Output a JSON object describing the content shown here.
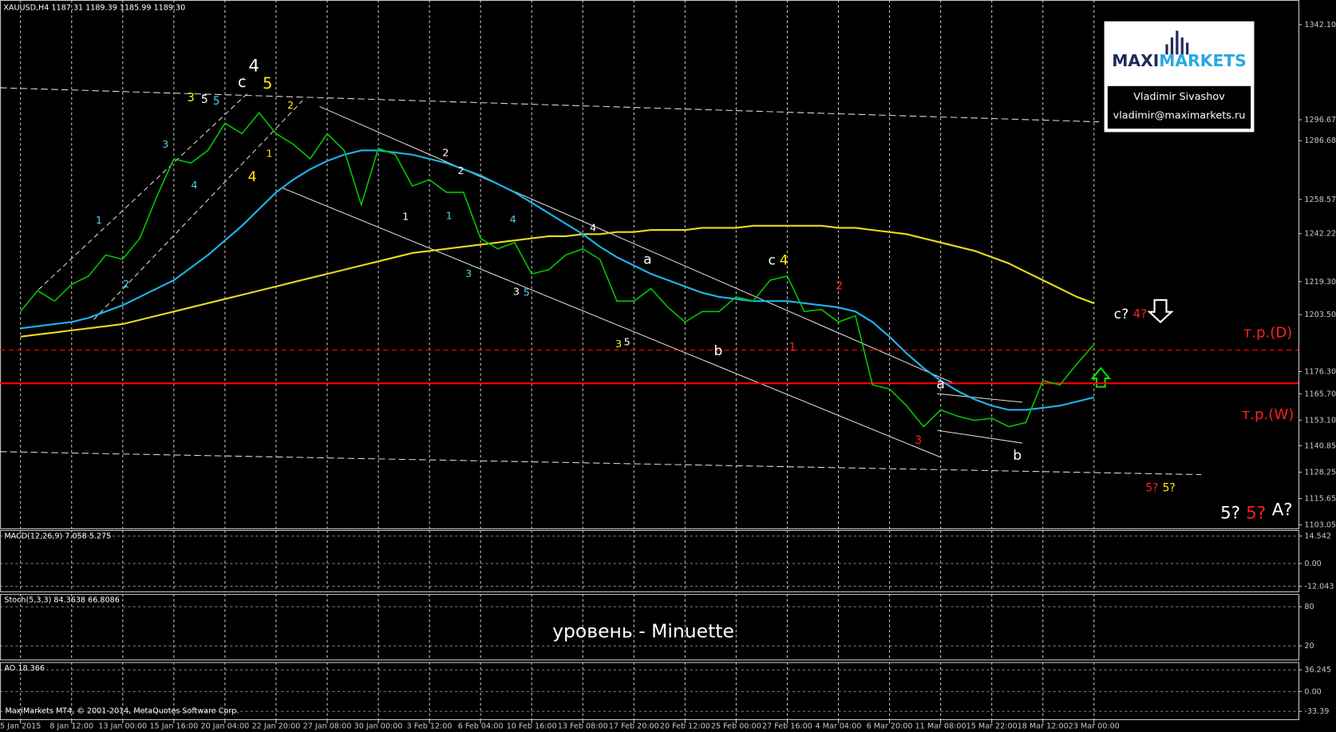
{
  "chart_data": {
    "type": "line",
    "title": "XAUUSD,H4  1187.31 1189.39 1185.99 1189.30",
    "categories": [
      "5 Jan 2015",
      null,
      null,
      "8 Jan 12:00",
      null,
      null,
      "13 Jan 00:00",
      null,
      null,
      "15 Jan 16:00",
      null,
      null,
      "20 Jan 04:00",
      null,
      null,
      "22 Jan 20:00",
      null,
      null,
      "27 Jan 08:00",
      null,
      null,
      "30 Jan 00:00",
      null,
      null,
      "3 Feb 12:00",
      null,
      null,
      "6 Feb 04:00",
      null,
      null,
      "10 Feb 16:00",
      null,
      null,
      "13 Feb 08:00",
      null,
      null,
      "17 Feb 20:00",
      null,
      null,
      "20 Feb 12:00",
      null,
      null,
      "25 Feb 00:00",
      null,
      null,
      "27 Feb 16:00",
      null,
      null,
      "4 Mar 04:00",
      null,
      null,
      "6 Mar 20:00",
      null,
      null,
      "11 Mar 08:00",
      null,
      null,
      "15 Mar 22:00",
      null,
      null,
      "18 Mar 12:00",
      null,
      null,
      "23 Mar 00:00"
    ],
    "series": [
      {
        "color": "#00c800",
        "values": [
          1205,
          1215,
          1210,
          1218,
          1222,
          1232,
          1230,
          1240,
          1260,
          1278,
          1276,
          1282,
          1295,
          1290,
          1300,
          1290,
          1285,
          1278,
          1290,
          1282,
          1256,
          1283,
          1280,
          1265,
          1268,
          1262,
          1262,
          1240,
          1235,
          1238,
          1223,
          1225,
          1232,
          1235,
          1230,
          1210,
          1210,
          1216,
          1207,
          1200,
          1205,
          1205,
          1212,
          1210,
          1220,
          1222,
          1205,
          1206,
          1200,
          1203,
          1170,
          1168,
          1160,
          1150,
          1158,
          1155,
          1153,
          1154,
          1150,
          1152,
          1172,
          1170,
          1180,
          1189.3
        ]
      },
      {
        "color": "#1eb4f0",
        "values": [
          1197,
          1198,
          1199,
          1200,
          1202,
          1205,
          1208,
          1212,
          1216,
          1220,
          1226,
          1232,
          1239,
          1246,
          1254,
          1262,
          1268,
          1273,
          1277,
          1280,
          1282,
          1282,
          1281,
          1280,
          1278,
          1276,
          1273,
          1270,
          1266,
          1262,
          1257,
          1252,
          1247,
          1242,
          1236,
          1231,
          1227,
          1223,
          1220,
          1217,
          1214,
          1212,
          1211,
          1210,
          1210,
          1210,
          1209,
          1208,
          1207,
          1205,
          1200,
          1193,
          1185,
          1178,
          1172,
          1167,
          1163,
          1160,
          1158,
          1158,
          1159,
          1160,
          1162,
          1164
        ]
      },
      {
        "color": "#e6dc1e",
        "values": [
          1193,
          1194,
          1195,
          1196,
          1197,
          1198,
          1199,
          1201,
          1203,
          1205,
          1207,
          1209,
          1211,
          1213,
          1215,
          1217,
          1219,
          1221,
          1223,
          1225,
          1227,
          1229,
          1231,
          1233,
          1234,
          1235,
          1236,
          1237,
          1238,
          1239,
          1240,
          1241,
          1241,
          1242,
          1242,
          1243,
          1243,
          1244,
          1244,
          1244,
          1245,
          1245,
          1245,
          1246,
          1246,
          1246,
          1246,
          1246,
          1245,
          1245,
          1244,
          1243,
          1242,
          1240,
          1238,
          1236,
          1234,
          1231,
          1228,
          1224,
          1220,
          1216,
          1212,
          1209
        ]
      }
    ],
    "ylim": [
      1101.4,
      1353.9
    ],
    "yticks": [
      {
        "value": 1342.1,
        "label": "1342.10"
      },
      {
        "value": 1296.67,
        "label": "1296.67"
      },
      {
        "value": 1286.68,
        "label": "1286.68"
      },
      {
        "value": 1258.57,
        "label": "1258.57"
      },
      {
        "value": 1242.22,
        "label": "1242.22"
      },
      {
        "value": 1219.3,
        "label": "1219.30"
      },
      {
        "value": 1203.5,
        "label": "1203.50"
      },
      {
        "value": 1176.3,
        "label": "1176.30"
      },
      {
        "value": 1165.7,
        "label": "1165.70"
      },
      {
        "value": 1153.1,
        "label": "1153.10"
      },
      {
        "value": 1140.85,
        "label": "1140.85"
      },
      {
        "value": 1128.25,
        "label": "1128.25"
      },
      {
        "value": 1115.65,
        "label": "1115.65"
      },
      {
        "value": 1103.05,
        "label": "1103.05"
      }
    ],
    "grid": true,
    "levels": [
      {
        "value": 1170.7,
        "color": "#ff0000",
        "style": "solid"
      },
      {
        "value": 1186.6,
        "color": "#ff0000",
        "style": "dashed"
      }
    ],
    "annotations": [
      "4",
      "c",
      "5",
      "3",
      "5",
      "5",
      "1",
      "2",
      "3",
      "4",
      "4",
      "1",
      "2",
      "1",
      "1",
      "2",
      "2",
      "3",
      "4",
      "3",
      "5",
      "4",
      "a",
      "3",
      "5",
      "b",
      "c",
      "4",
      "2",
      "1",
      "a",
      "3",
      "b",
      "c?",
      "4?",
      "т.р.(D)",
      "т.р.(W)",
      "5?",
      "5?",
      "5?",
      "5?",
      "A?",
      "уровень - Minuette"
    ]
  },
  "panels": [
    {
      "label": "MACD(12,26,9) 7.058 5.275",
      "ylim": [
        -15.2,
        17.7
      ],
      "yticks": [
        14.542,
        {
          "value": 0,
          "label": "0.00"
        },
        -12.043
      ]
    },
    {
      "label": "Stoch(5,3,3) 84.3638 66.8086",
      "ylim": [
        -2.2,
        99.6
      ],
      "yticks": [
        80,
        20
      ]
    },
    {
      "label": "AO 18.366",
      "ylim": [
        -47.9,
        49.3
      ],
      "yticks": [
        36.245,
        {
          "value": 0,
          "label": "0.00"
        },
        -33.39
      ]
    }
  ],
  "logo": {
    "part_a": "MAXI",
    "part_b": "MARKETS",
    "name": "Vladimir Sivashov",
    "email": "vladimir@maximarkets.ru"
  },
  "footer": "MaxiMarkets MT4, © 2001-2014, MetaQuotes Software Corp."
}
